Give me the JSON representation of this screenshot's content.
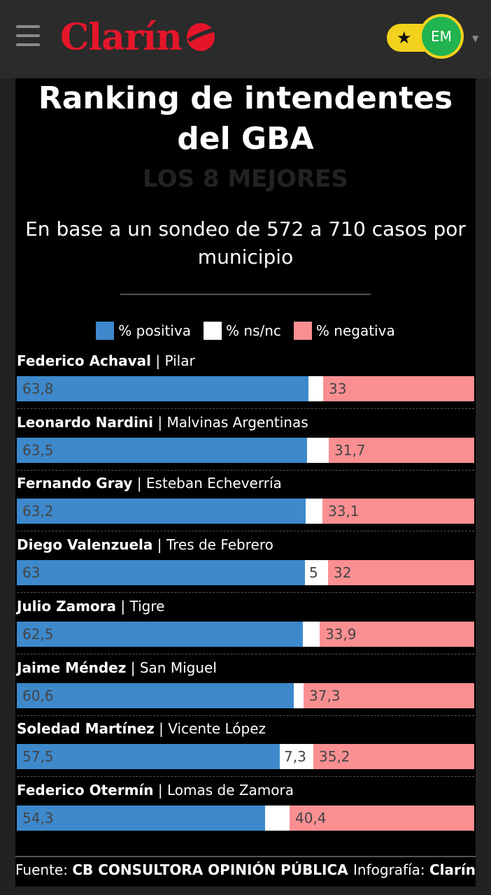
{
  "header": {
    "logo_text": "Clarín",
    "avatar_initials": "EM",
    "colors": {
      "brand": "#e5162a",
      "badge": "#f2d21c",
      "avatar": "#21b34f"
    }
  },
  "infographic": {
    "title": "Ranking de intendentes del GBA",
    "subtitle": "LOS 8 MEJORES",
    "description": "En base a un sondeo de 572 a 710 casos por municipio",
    "source_label": "Fuente:",
    "source_name": "CB CONSULTORA OPINIÓN PÚBLICA",
    "credit_label": "Infografía:",
    "credit_name": "Clarín"
  },
  "chart_data": {
    "type": "bar",
    "stacked": true,
    "orientation": "horizontal",
    "title": "Ranking de intendentes del GBA",
    "subtitle": "LOS 8 MEJORES",
    "legend_position": "top",
    "series": [
      {
        "name": "% positiva",
        "color": "#3d89cc"
      },
      {
        "name": "% ns/nc",
        "color": "#ffffff"
      },
      {
        "name": "% negativa",
        "color": "#fa8f92"
      }
    ],
    "rows": [
      {
        "name": "Federico Achaval",
        "place": "Pilar",
        "positive": 63.8,
        "nsnc": 3.2,
        "negative": 33,
        "labels": [
          "63,8",
          "",
          "33"
        ]
      },
      {
        "name": "Leonardo Nardini",
        "place": "Malvinas Argentinas",
        "positive": 63.5,
        "nsnc": 4.8,
        "negative": 31.7,
        "labels": [
          "63,5",
          "",
          "31,7"
        ]
      },
      {
        "name": "Fernando Gray",
        "place": "Esteban Echeverría",
        "positive": 63.2,
        "nsnc": 3.7,
        "negative": 33.1,
        "labels": [
          "63,2",
          "",
          "33,1"
        ]
      },
      {
        "name": "Diego Valenzuela",
        "place": "Tres de Febrero",
        "positive": 63,
        "nsnc": 5,
        "negative": 32,
        "labels": [
          "63",
          "5",
          "32"
        ]
      },
      {
        "name": "Julio Zamora",
        "place": "Tigre",
        "positive": 62.5,
        "nsnc": 3.6,
        "negative": 33.9,
        "labels": [
          "62,5",
          "",
          "33,9"
        ]
      },
      {
        "name": "Jaime Méndez",
        "place": "San Miguel",
        "positive": 60.6,
        "nsnc": 2.1,
        "negative": 37.3,
        "labels": [
          "60,6",
          "",
          "37,3"
        ]
      },
      {
        "name": "Soledad Martínez",
        "place": "Vicente López",
        "positive": 57.5,
        "nsnc": 7.3,
        "negative": 35.2,
        "labels": [
          "57,5",
          "7,3",
          "35,2"
        ]
      },
      {
        "name": "Federico Otermín",
        "place": "Lomas de Zamora",
        "positive": 54.3,
        "nsnc": 5.3,
        "negative": 40.4,
        "labels": [
          "54,3",
          "",
          "40,4"
        ]
      }
    ]
  }
}
